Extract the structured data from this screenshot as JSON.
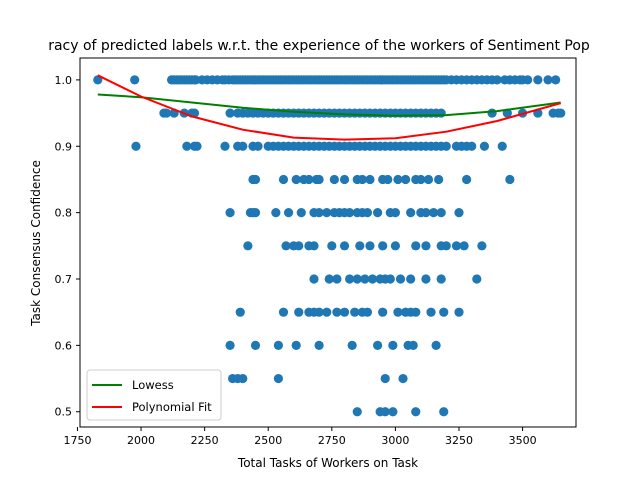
{
  "chart_data": {
    "type": "scatter",
    "title": "racy of predicted labels w.r.t. the experience of the workers of Sentiment Pop",
    "xlabel": "Total Tasks of Workers on Task",
    "ylabel": "Task Consensus Confidence",
    "xlim": [
      1760,
      3710
    ],
    "ylim": [
      0.477,
      1.033
    ],
    "x_ticks": [
      1750,
      2000,
      2250,
      2500,
      2750,
      3000,
      3250,
      3500
    ],
    "y_ticks": [
      0.5,
      0.6,
      0.7,
      0.8,
      0.9,
      1.0
    ],
    "x_tick_labels": [
      "1750",
      "2000",
      "2250",
      "2500",
      "2750",
      "3000",
      "3250",
      "3500"
    ],
    "y_tick_labels": [
      "0.5",
      "0.6",
      "0.7",
      "0.8",
      "0.9",
      "1.0"
    ],
    "grid": false,
    "legend": {
      "position": "lower-left",
      "entries": [
        {
          "label": "Lowess",
          "color": "#008000"
        },
        {
          "label": "Polynomial Fit",
          "color": "#ff0000"
        }
      ]
    },
    "scatter_color": "#1f77b4",
    "points": [
      {
        "y": 1.0,
        "x": [
          1830,
          1975,
          2120,
          2130,
          2140,
          2150,
          2160,
          2170,
          2180,
          2190,
          2200,
          2210,
          2215,
          2240,
          2260,
          2280,
          2300,
          2320,
          2330,
          2345,
          2360,
          2370,
          2380,
          2390,
          2400,
          2410,
          2420,
          2430,
          2440,
          2450,
          2460,
          2470,
          2480,
          2490,
          2500,
          2510,
          2520,
          2530,
          2540,
          2550,
          2560,
          2570,
          2580,
          2590,
          2600,
          2610,
          2620,
          2630,
          2640,
          2650,
          2660,
          2670,
          2680,
          2690,
          2700,
          2710,
          2720,
          2730,
          2740,
          2750,
          2760,
          2770,
          2780,
          2790,
          2800,
          2810,
          2820,
          2830,
          2840,
          2850,
          2860,
          2870,
          2880,
          2890,
          2900,
          2910,
          2920,
          2930,
          2940,
          2950,
          2960,
          2970,
          2980,
          2990,
          3000,
          3010,
          3020,
          3030,
          3040,
          3050,
          3060,
          3070,
          3080,
          3090,
          3100,
          3110,
          3120,
          3130,
          3140,
          3150,
          3160,
          3170,
          3180,
          3190,
          3200,
          3220,
          3240,
          3260,
          3280,
          3300,
          3320,
          3340,
          3360,
          3380,
          3400,
          3430,
          3450,
          3470,
          3490,
          3500,
          3520,
          3560,
          3600,
          3630
        ]
      },
      {
        "y": 0.95,
        "x": [
          2090,
          2100,
          2130,
          2170,
          2200,
          2210,
          2350,
          2380,
          2400,
          2420,
          2440,
          2460,
          2480,
          2500,
          2520,
          2540,
          2560,
          2580,
          2600,
          2620,
          2640,
          2660,
          2680,
          2700,
          2720,
          2740,
          2760,
          2780,
          2800,
          2820,
          2840,
          2860,
          2880,
          2900,
          2920,
          2940,
          2960,
          2980,
          3000,
          3020,
          3040,
          3060,
          3080,
          3100,
          3120,
          3140,
          3160,
          3180,
          3380,
          3440,
          3500,
          3560,
          3620,
          3640,
          3650
        ]
      },
      {
        "y": 0.9,
        "x": [
          1980,
          2180,
          2210,
          2220,
          2330,
          2380,
          2400,
          2440,
          2460,
          2500,
          2520,
          2540,
          2560,
          2580,
          2600,
          2620,
          2640,
          2660,
          2680,
          2700,
          2720,
          2740,
          2760,
          2780,
          2800,
          2820,
          2840,
          2860,
          2880,
          2900,
          2920,
          2940,
          2960,
          2980,
          3000,
          3020,
          3040,
          3060,
          3080,
          3100,
          3120,
          3140,
          3160,
          3180,
          3200,
          3240,
          3260,
          3280,
          3300,
          3350,
          3420
        ]
      },
      {
        "y": 0.85,
        "x": [
          2440,
          2450,
          2560,
          2610,
          2640,
          2660,
          2690,
          2700,
          2760,
          2800,
          2850,
          2870,
          2900,
          2950,
          2970,
          3010,
          3040,
          3080,
          3100,
          3130,
          3170,
          3280,
          3450
        ]
      },
      {
        "y": 0.8,
        "x": [
          2350,
          2430,
          2440,
          2450,
          2530,
          2580,
          2630,
          2680,
          2700,
          2730,
          2760,
          2780,
          2800,
          2820,
          2850,
          2870,
          2890,
          2930,
          2980,
          3000,
          3060,
          3100,
          3120,
          3150,
          3180,
          3250
        ]
      },
      {
        "y": 0.75,
        "x": [
          2420,
          2570,
          2600,
          2620,
          2660,
          2680,
          2750,
          2800,
          2860,
          2900,
          2950,
          3000,
          3080,
          3120,
          3180,
          3200,
          3240,
          3270,
          3340
        ]
      },
      {
        "y": 0.7,
        "x": [
          2680,
          2740,
          2770,
          2820,
          2850,
          2880,
          2910,
          2940,
          2960,
          2980,
          3020,
          3060,
          3120,
          3180,
          3320
        ]
      },
      {
        "y": 0.65,
        "x": [
          2390,
          2560,
          2620,
          2660,
          2680,
          2700,
          2730,
          2770,
          2800,
          2840,
          2870,
          2890,
          2950,
          3010,
          3040,
          3060,
          3080,
          3140,
          3190,
          3250
        ]
      },
      {
        "y": 0.6,
        "x": [
          2350,
          2450,
          2540,
          2610,
          2700,
          2830,
          2930,
          2990,
          3050,
          3070,
          3160
        ]
      },
      {
        "y": 0.55,
        "x": [
          2360,
          2380,
          2400,
          2540,
          2960,
          3030
        ]
      },
      {
        "y": 0.5,
        "x": [
          2850,
          2940,
          2960,
          2990,
          3080,
          3190
        ]
      }
    ],
    "lowess": {
      "x": [
        1830,
        2000,
        2200,
        2400,
        2600,
        2800,
        3000,
        3200,
        3400,
        3650
      ],
      "y": [
        0.978,
        0.974,
        0.966,
        0.958,
        0.952,
        0.948,
        0.946,
        0.947,
        0.953,
        0.966
      ]
    },
    "polynomial_fit": {
      "x": [
        1830,
        2000,
        2200,
        2400,
        2600,
        2800,
        3000,
        3200,
        3400,
        3650
      ],
      "y": [
        1.007,
        0.975,
        0.945,
        0.925,
        0.913,
        0.91,
        0.912,
        0.922,
        0.938,
        0.965
      ]
    }
  }
}
